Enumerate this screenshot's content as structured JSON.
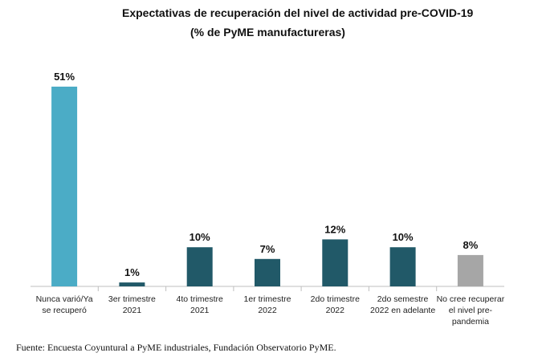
{
  "chart_data": {
    "type": "bar",
    "title": "Expectativas de recuperación del nivel de actividad pre-COVID-19",
    "subtitle": "(% de PyME manufactureras)",
    "categories": [
      [
        "Nunca varió/Ya",
        "se recuperó"
      ],
      [
        "3er trimestre",
        "2021"
      ],
      [
        "4to trimestre",
        "2021"
      ],
      [
        "1er trimestre",
        "2022"
      ],
      [
        "2do trimestre",
        "2022"
      ],
      [
        "2do semestre",
        "2022 en adelante"
      ],
      [
        "No cree recuperar",
        "el nivel pre-",
        "pandemia"
      ]
    ],
    "values": [
      51,
      1,
      10,
      7,
      12,
      10,
      8
    ],
    "labels": [
      "51%",
      "1%",
      "10%",
      "7%",
      "12%",
      "10%",
      "8%"
    ],
    "colors": [
      "#4bacc6",
      "#215968",
      "#215968",
      "#215968",
      "#215968",
      "#215968",
      "#a6a6a6"
    ],
    "ylim": [
      0,
      51
    ],
    "grid": false,
    "legend": "none"
  },
  "source": "Fuente: Encuesta Coyuntural a PyME industriales, Fundación Observatorio PyME."
}
